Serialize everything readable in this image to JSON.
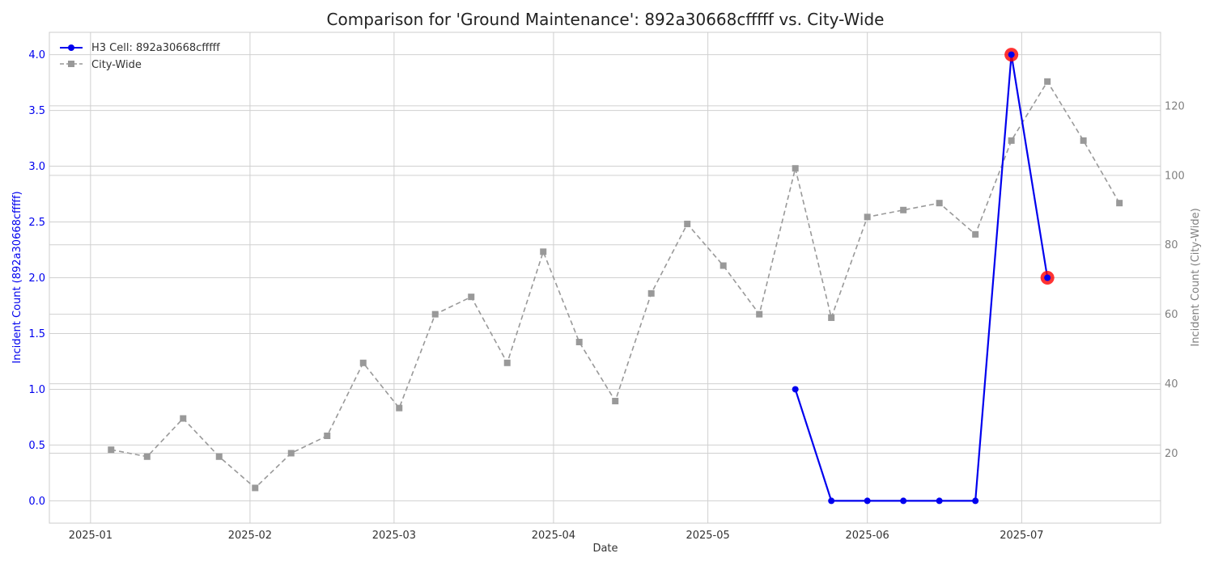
{
  "chart_data": {
    "type": "line",
    "title": "Comparison for 'Ground Maintenance': 892a30668cfffff vs. City-Wide",
    "xlabel": "Date",
    "ylabel_left": "Incident Count (892a30668cfffff)",
    "ylabel_right": "Incident Count (City-Wide)",
    "x_ticks": [
      "2025-01",
      "2025-02",
      "2025-03",
      "2025-04",
      "2025-05",
      "2025-06",
      "2025-07"
    ],
    "x_tick_dates": [
      "2025-01-01",
      "2025-02-01",
      "2025-03-01",
      "2025-04-01",
      "2025-05-01",
      "2025-06-01",
      "2025-07-01"
    ],
    "xlim": [
      "2024-12-24",
      "2025-07-28"
    ],
    "ylim_left": [
      -0.2,
      4.2
    ],
    "ylim_right": [
      -0.14,
      141.16
    ],
    "yticks_left": [
      0.0,
      0.5,
      1.0,
      1.5,
      2.0,
      2.5,
      3.0,
      3.5,
      4.0
    ],
    "yticks_right": [
      20,
      40,
      60,
      80,
      100,
      120
    ],
    "grid": true,
    "legend_position": "top-left",
    "colors": {
      "h3": "#0000ee",
      "city": "#999999",
      "highlight": "#ff0000",
      "left_axis": "#0000ee",
      "right_axis": "#808080"
    },
    "series": [
      {
        "name": "H3 Cell: 892a30668cfffff",
        "axis": "left",
        "style": "solid",
        "marker": "circle",
        "points": [
          {
            "x": "2025-05-18",
            "y": 1
          },
          {
            "x": "2025-05-25",
            "y": 0
          },
          {
            "x": "2025-06-01",
            "y": 0
          },
          {
            "x": "2025-06-08",
            "y": 0
          },
          {
            "x": "2025-06-15",
            "y": 0
          },
          {
            "x": "2025-06-22",
            "y": 0
          },
          {
            "x": "2025-06-29",
            "y": 4
          },
          {
            "x": "2025-07-06",
            "y": 2
          }
        ]
      },
      {
        "name": "City-Wide",
        "axis": "right",
        "style": "dashed",
        "marker": "square",
        "points": [
          {
            "x": "2025-01-05",
            "y": 21
          },
          {
            "x": "2025-01-12",
            "y": 19
          },
          {
            "x": "2025-01-19",
            "y": 30
          },
          {
            "x": "2025-01-26",
            "y": 19
          },
          {
            "x": "2025-02-02",
            "y": 10
          },
          {
            "x": "2025-02-09",
            "y": 20
          },
          {
            "x": "2025-02-16",
            "y": 25
          },
          {
            "x": "2025-02-23",
            "y": 46
          },
          {
            "x": "2025-03-02",
            "y": 33
          },
          {
            "x": "2025-03-09",
            "y": 60
          },
          {
            "x": "2025-03-16",
            "y": 65
          },
          {
            "x": "2025-03-23",
            "y": 46
          },
          {
            "x": "2025-03-30",
            "y": 78
          },
          {
            "x": "2025-04-06",
            "y": 52
          },
          {
            "x": "2025-04-13",
            "y": 35
          },
          {
            "x": "2025-04-20",
            "y": 66
          },
          {
            "x": "2025-04-27",
            "y": 86
          },
          {
            "x": "2025-05-04",
            "y": 74
          },
          {
            "x": "2025-05-11",
            "y": 60
          },
          {
            "x": "2025-05-18",
            "y": 102
          },
          {
            "x": "2025-05-25",
            "y": 59
          },
          {
            "x": "2025-06-01",
            "y": 88
          },
          {
            "x": "2025-06-08",
            "y": 90
          },
          {
            "x": "2025-06-15",
            "y": 92
          },
          {
            "x": "2025-06-22",
            "y": 83
          },
          {
            "x": "2025-06-29",
            "y": 110
          },
          {
            "x": "2025-07-06",
            "y": 127
          },
          {
            "x": "2025-07-13",
            "y": 110
          },
          {
            "x": "2025-07-20",
            "y": 92
          }
        ]
      }
    ],
    "highlighted_points": [
      {
        "series": "H3 Cell: 892a30668cfffff",
        "x": "2025-06-29",
        "y": 4
      },
      {
        "series": "H3 Cell: 892a30668cfffff",
        "x": "2025-07-06",
        "y": 2
      }
    ]
  }
}
